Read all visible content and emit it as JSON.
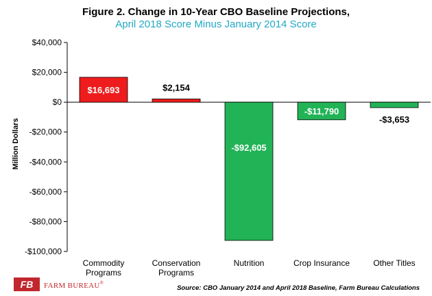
{
  "title": "Figure 2. Change in 10-Year CBO Baseline Projections,",
  "subtitle": "April 2018 Score Minus January 2014 Score",
  "source": "Source: CBO January 2014 and April 2018 Baseline, Farm Bureau Calculations",
  "brand": {
    "name": "FARM BUREAU",
    "mark": "®",
    "logo_text": "FB",
    "color": "#c1272d"
  },
  "chart_data": {
    "type": "bar",
    "ylabel": "Million Dollars",
    "ylim": [
      -100000,
      40000
    ],
    "yticks": [
      40000,
      20000,
      0,
      -20000,
      -40000,
      -60000,
      -80000,
      -100000
    ],
    "ytick_labels": [
      "$40,000",
      "$20,000",
      "$0",
      "-$20,000",
      "-$40,000",
      "-$60,000",
      "-$80,000",
      "-$100,000"
    ],
    "categories": [
      [
        "Commodity",
        "Programs"
      ],
      [
        "Conservation",
        "Programs"
      ],
      [
        "Nutrition"
      ],
      [
        "Crop Insurance"
      ],
      [
        "Other Titles"
      ]
    ],
    "values": [
      16693,
      2154,
      -92605,
      -11790,
      -3653
    ],
    "data_labels": [
      "$16,693",
      "$2,154",
      "-$92,605",
      "-$11,790",
      "-$3,653"
    ],
    "colors": {
      "positive": "#ee1c1c",
      "negative": "#22b357",
      "label_inside": "#ffffff",
      "label_outside": "#000000"
    },
    "grid": false
  }
}
